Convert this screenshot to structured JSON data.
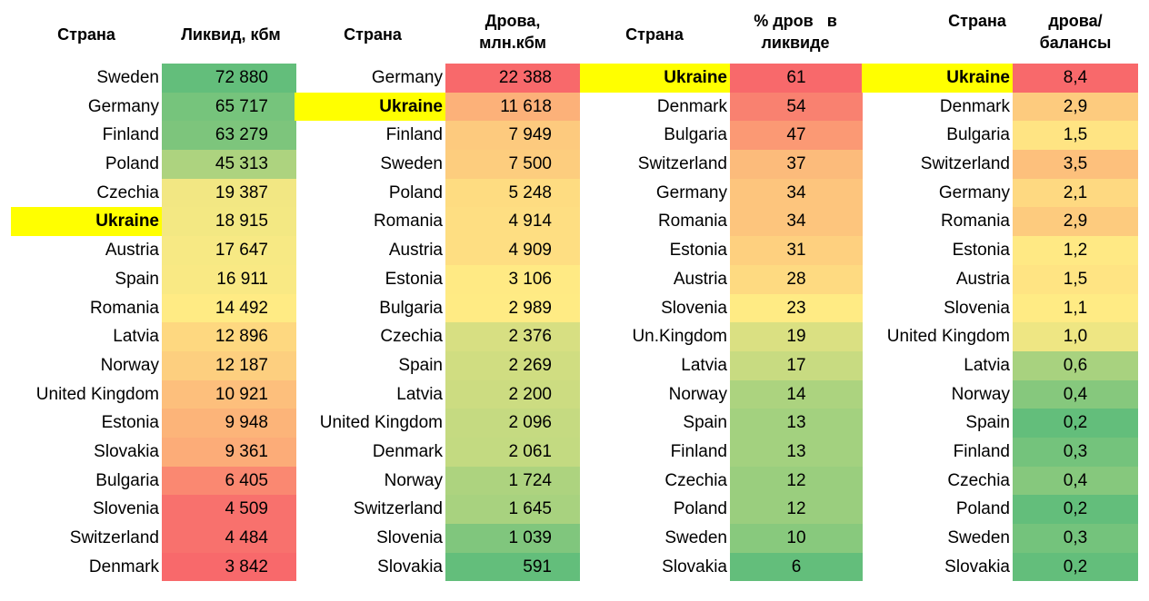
{
  "chart_data": [
    {
      "type": "table",
      "headers": [
        "Страна",
        "Ликвид, кбм"
      ],
      "highlight": "Ukraine",
      "rows": [
        [
          "Sweden",
          "72 880"
        ],
        [
          "Germany",
          "65 717"
        ],
        [
          "Finland",
          "63 279"
        ],
        [
          "Poland",
          "45 313"
        ],
        [
          "Czechia",
          "19 387"
        ],
        [
          "Ukraine",
          "18 915"
        ],
        [
          "Austria",
          "17 647"
        ],
        [
          "Spain",
          "16 911"
        ],
        [
          "Romania",
          "14 492"
        ],
        [
          "Latvia",
          "12 896"
        ],
        [
          "Norway",
          "12 187"
        ],
        [
          "United Kingdom",
          "10 921"
        ],
        [
          "Estonia",
          "9 948"
        ],
        [
          "Slovakia",
          "9 361"
        ],
        [
          "Bulgaria",
          "6 405"
        ],
        [
          "Slovenia",
          "4 509"
        ],
        [
          "Switzerland",
          "4 484"
        ],
        [
          "Denmark",
          "3 842"
        ]
      ],
      "values": [
        72880,
        65717,
        63279,
        45313,
        19387,
        18915,
        17647,
        16911,
        14492,
        12896,
        12187,
        10921,
        9948,
        9361,
        6405,
        4509,
        4484,
        3842
      ],
      "color_scale": "high-green"
    },
    {
      "type": "table",
      "headers": [
        "Страна",
        "Дрова,\nмлн.кбм"
      ],
      "highlight": "Ukraine",
      "rows": [
        [
          "Germany",
          "22 388"
        ],
        [
          "Ukraine",
          "11 618"
        ],
        [
          "Finland",
          "7 949"
        ],
        [
          "Sweden",
          "7 500"
        ],
        [
          "Poland",
          "5 248"
        ],
        [
          "Romania",
          "4 914"
        ],
        [
          "Austria",
          "4 909"
        ],
        [
          "Estonia",
          "3 106"
        ],
        [
          "Bulgaria",
          "2 989"
        ],
        [
          "Czechia",
          "2 376"
        ],
        [
          "Spain",
          "2 269"
        ],
        [
          "Latvia",
          "2 200"
        ],
        [
          "United Kingdom",
          "2 096"
        ],
        [
          "Denmark",
          "2 061"
        ],
        [
          "Norway",
          "1 724"
        ],
        [
          "Switzerland",
          "1 645"
        ],
        [
          "Slovenia",
          "1 039"
        ],
        [
          "Slovakia",
          "591"
        ]
      ],
      "values": [
        22388,
        11618,
        7949,
        7500,
        5248,
        4914,
        4909,
        3106,
        2989,
        2376,
        2269,
        2200,
        2096,
        2061,
        1724,
        1645,
        1039,
        591
      ],
      "color_scale": "high-red"
    },
    {
      "type": "table",
      "headers": [
        "Страна",
        "% дров   в\nликвиде"
      ],
      "highlight": "Ukraine",
      "rows": [
        [
          "Ukraine",
          "61"
        ],
        [
          "Denmark",
          "54"
        ],
        [
          "Bulgaria",
          "47"
        ],
        [
          "Switzerland",
          "37"
        ],
        [
          "Germany",
          "34"
        ],
        [
          "Romania",
          "34"
        ],
        [
          "Estonia",
          "31"
        ],
        [
          "Austria",
          "28"
        ],
        [
          "Slovenia",
          "23"
        ],
        [
          "Un.Kingdom",
          "19"
        ],
        [
          "Latvia",
          "17"
        ],
        [
          "Norway",
          "14"
        ],
        [
          "Spain",
          "13"
        ],
        [
          "Finland",
          "13"
        ],
        [
          "Czechia",
          "12"
        ],
        [
          "Poland",
          "12"
        ],
        [
          "Sweden",
          "10"
        ],
        [
          "Slovakia",
          "6"
        ]
      ],
      "values": [
        61,
        54,
        47,
        37,
        34,
        34,
        31,
        28,
        23,
        19,
        17,
        14,
        13,
        13,
        12,
        12,
        10,
        6
      ],
      "color_scale": "high-red"
    },
    {
      "type": "table",
      "headers": [
        "Страна",
        "дрова/\nбалансы"
      ],
      "highlight": "Ukraine",
      "rows": [
        [
          "Ukraine",
          "8,4"
        ],
        [
          "Denmark",
          "2,9"
        ],
        [
          "Bulgaria",
          "1,5"
        ],
        [
          "Switzerland",
          "3,5"
        ],
        [
          "Germany",
          "2,1"
        ],
        [
          "Romania",
          "2,9"
        ],
        [
          "Estonia",
          "1,2"
        ],
        [
          "Austria",
          "1,5"
        ],
        [
          "Slovenia",
          "1,1"
        ],
        [
          "United Kingdom",
          "1,0"
        ],
        [
          "Latvia",
          "0,6"
        ],
        [
          "Norway",
          "0,4"
        ],
        [
          "Spain",
          "0,2"
        ],
        [
          "Finland",
          "0,3"
        ],
        [
          "Czechia",
          "0,4"
        ],
        [
          "Poland",
          "0,2"
        ],
        [
          "Sweden",
          "0,3"
        ],
        [
          "Slovakia",
          "0,2"
        ]
      ],
      "values": [
        8.4,
        2.9,
        1.5,
        3.5,
        2.1,
        2.9,
        1.2,
        1.5,
        1.1,
        1.0,
        0.6,
        0.4,
        0.2,
        0.3,
        0.4,
        0.2,
        0.3,
        0.2
      ],
      "color_scale": "high-red"
    }
  ],
  "colors": {
    "highlight": "#ffff00",
    "red": "#f8696b",
    "yellow": "#ffeb84",
    "green": "#63be7b"
  }
}
